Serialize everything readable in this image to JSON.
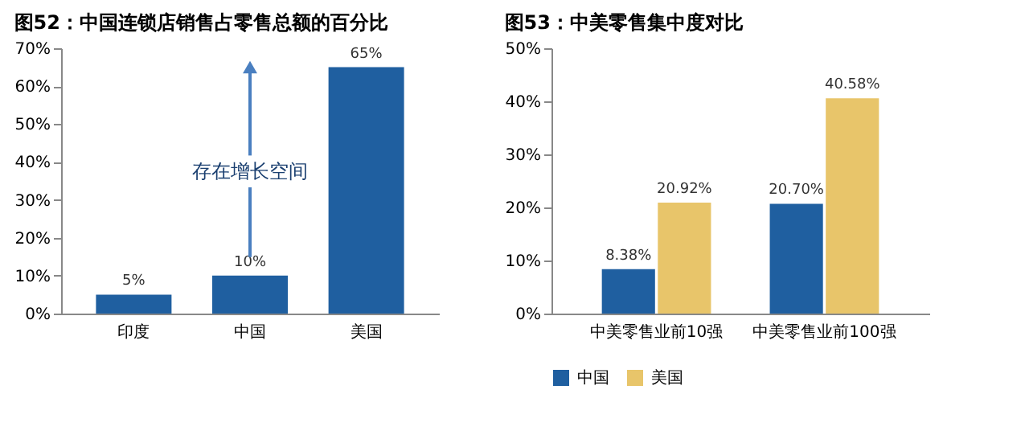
{
  "chart_data": [
    {
      "type": "bar",
      "title": "图52：中国连锁店销售占零售总额的百分比",
      "categories": [
        "印度",
        "中国",
        "美国"
      ],
      "values": [
        5,
        10,
        65
      ],
      "color": "#1f5fa0",
      "value_labels": [
        "5%",
        "10%",
        "65%"
      ],
      "ylim": [
        0,
        70
      ],
      "yticks": [
        {
          "value": 0,
          "label": "0%"
        },
        {
          "value": 10,
          "label": "10%"
        },
        {
          "value": 20,
          "label": "20%"
        },
        {
          "value": 30,
          "label": "30%"
        },
        {
          "value": 40,
          "label": "40%"
        },
        {
          "value": 50,
          "label": "50%"
        },
        {
          "value": 60,
          "label": "60%"
        },
        {
          "value": 70,
          "label": "70%"
        }
      ],
      "annotations": [
        "存在增长空间"
      ],
      "grid": false,
      "legend": false
    },
    {
      "type": "bar",
      "title": "图53：中美零售集中度对比",
      "categories": [
        "中美零售业前10强",
        "中美零售业前100强"
      ],
      "series": [
        {
          "name": "中国",
          "color": "#1f5fa0",
          "values": [
            8.38,
            20.7
          ],
          "value_labels": [
            "8.38%",
            "20.70%"
          ]
        },
        {
          "name": "美国",
          "color": "#e8c56a",
          "values": [
            20.92,
            40.58
          ],
          "value_labels": [
            "20.92%",
            "40.58%"
          ]
        }
      ],
      "ylim": [
        0,
        50
      ],
      "yticks": [
        {
          "value": 0,
          "label": "0%"
        },
        {
          "value": 10,
          "label": "10%"
        },
        {
          "value": 20,
          "label": "20%"
        },
        {
          "value": 30,
          "label": "30%"
        },
        {
          "value": 40,
          "label": "40%"
        },
        {
          "value": 50,
          "label": "50%"
        }
      ],
      "grid": false,
      "legend": "bottom"
    }
  ]
}
